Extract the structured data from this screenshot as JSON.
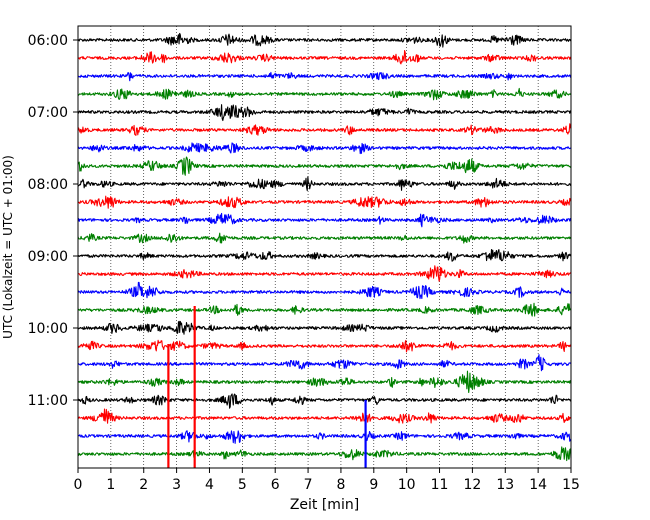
{
  "chart_data": {
    "type": "line",
    "title": "",
    "xlabel": "Zeit  [min]",
    "ylabel": "UTC (Lokalzeit = UTC + 01:00)",
    "xlim": [
      0,
      15
    ],
    "xticks": [
      0,
      1,
      2,
      3,
      4,
      5,
      6,
      7,
      8,
      9,
      10,
      11,
      12,
      13,
      14,
      15
    ],
    "grid": "vertical dotted",
    "trace_interval_min": 15,
    "first_trace": "06:00",
    "trace_colors": [
      "#000000",
      "#ff0000",
      "#0000ff",
      "#008000"
    ],
    "yticks": [
      {
        "label": "06:00",
        "trace": 0
      },
      {
        "label": "07:00",
        "trace": 4
      },
      {
        "label": "08:00",
        "trace": 8
      },
      {
        "label": "09:00",
        "trace": 12
      },
      {
        "label": "10:00",
        "trace": 16
      },
      {
        "label": "11:00",
        "trace": 20
      }
    ],
    "traces": [
      {
        "start": "06:00",
        "color": "#000000"
      },
      {
        "start": "06:15",
        "color": "#ff0000"
      },
      {
        "start": "06:30",
        "color": "#0000ff"
      },
      {
        "start": "06:45",
        "color": "#008000"
      },
      {
        "start": "07:00",
        "color": "#000000"
      },
      {
        "start": "07:15",
        "color": "#ff0000"
      },
      {
        "start": "07:30",
        "color": "#0000ff"
      },
      {
        "start": "07:45",
        "color": "#008000"
      },
      {
        "start": "08:00",
        "color": "#000000"
      },
      {
        "start": "08:15",
        "color": "#ff0000"
      },
      {
        "start": "08:30",
        "color": "#0000ff"
      },
      {
        "start": "08:45",
        "color": "#008000"
      },
      {
        "start": "09:00",
        "color": "#000000"
      },
      {
        "start": "09:15",
        "color": "#ff0000"
      },
      {
        "start": "09:30",
        "color": "#0000ff"
      },
      {
        "start": "09:45",
        "color": "#008000"
      },
      {
        "start": "10:00",
        "color": "#000000"
      },
      {
        "start": "10:15",
        "color": "#ff0000"
      },
      {
        "start": "10:30",
        "color": "#0000ff"
      },
      {
        "start": "10:45",
        "color": "#008000"
      },
      {
        "start": "11:00",
        "color": "#000000"
      },
      {
        "start": "11:15",
        "color": "#ff0000"
      },
      {
        "start": "11:30",
        "color": "#0000ff"
      },
      {
        "start": "11:45",
        "color": "#008000"
      }
    ],
    "spikes": [
      {
        "trace": 20,
        "x_min": 2.75,
        "color": "#ff0000"
      },
      {
        "trace": 21,
        "x_min": 3.55,
        "color": "#ff0000"
      },
      {
        "trace": 22,
        "x_min": 8.75,
        "color": "#0000ff"
      }
    ]
  }
}
